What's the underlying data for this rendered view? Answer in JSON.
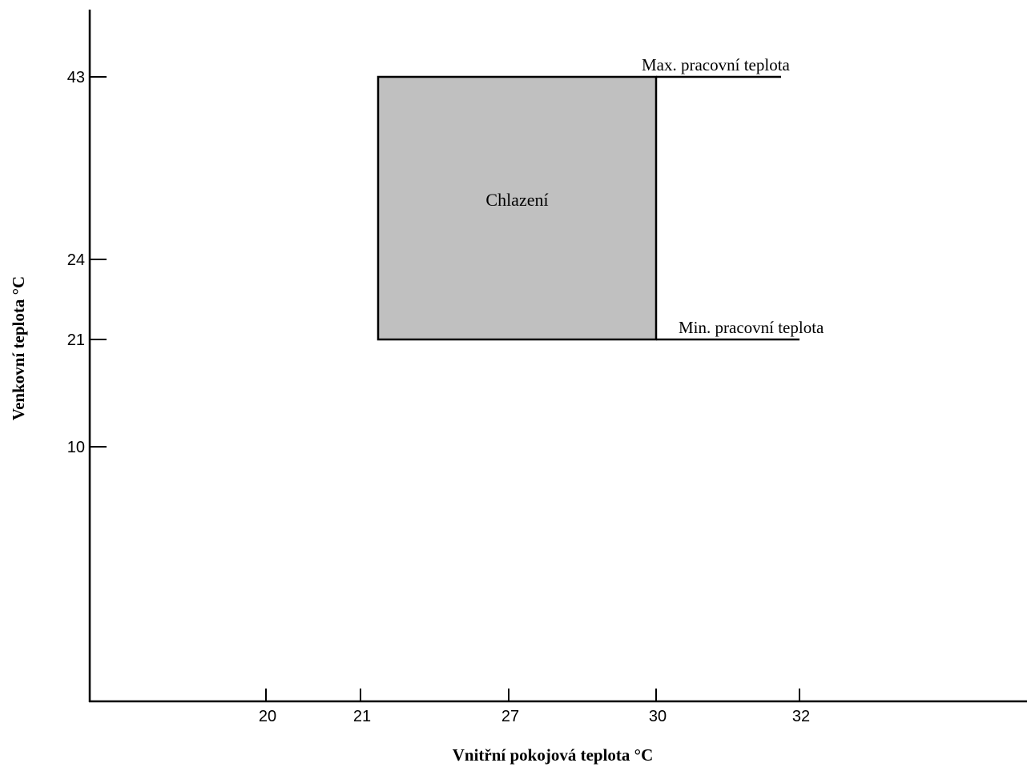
{
  "chart_data": {
    "type": "area",
    "xlabel": "Vnitřní pokojová teplota  °C",
    "ylabel": "Venkovní teplota °C",
    "x_ticks": [
      "20",
      "21",
      "27",
      "30",
      "32"
    ],
    "y_ticks": [
      "43",
      "24",
      "21",
      "10"
    ],
    "regions": [
      {
        "label": "Chlazení",
        "x": [
          21,
          30
        ],
        "y": [
          21,
          43
        ],
        "color": "#c0c0c0"
      }
    ],
    "annotations": [
      {
        "text": "Max. pracovní teplota",
        "y": 43
      },
      {
        "text": "Min. pracovní teplota",
        "y": 21
      }
    ],
    "grid": false,
    "legend": "none"
  }
}
